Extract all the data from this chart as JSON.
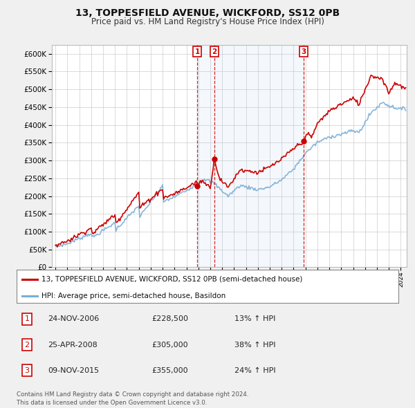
{
  "title": "13, TOPPESFIELD AVENUE, WICKFORD, SS12 0PB",
  "subtitle": "Price paid vs. HM Land Registry's House Price Index (HPI)",
  "yticks": [
    0,
    50000,
    100000,
    150000,
    200000,
    250000,
    300000,
    350000,
    400000,
    450000,
    500000,
    550000,
    600000
  ],
  "ylim": [
    0,
    625000
  ],
  "sale_color": "#cc0000",
  "hpi_color": "#7aaed6",
  "sale_label": "13, TOPPESFIELD AVENUE, WICKFORD, SS12 0PB (semi-detached house)",
  "hpi_label": "HPI: Average price, semi-detached house, Basildon",
  "transactions": [
    {
      "label": "1",
      "date": "24-NOV-2006",
      "price": "£228,500",
      "hpi_change": "13% ↑ HPI",
      "x_year": 2006.9
    },
    {
      "label": "2",
      "date": "25-APR-2008",
      "price": "£305,000",
      "hpi_change": "38% ↑ HPI",
      "x_year": 2008.33
    },
    {
      "label": "3",
      "date": "09-NOV-2015",
      "price": "£355,000",
      "hpi_change": "24% ↑ HPI",
      "x_year": 2015.85
    }
  ],
  "transaction_values": [
    228500,
    305000,
    355000
  ],
  "footer": "Contains HM Land Registry data © Crown copyright and database right 2024.\nThis data is licensed under the Open Government Licence v3.0.",
  "background_color": "#f0f0f0",
  "plot_bg_color": "#ffffff",
  "grid_color": "#cccccc",
  "shade_color": "#ddeeff",
  "x_min": 1994.7,
  "x_max": 2024.5
}
